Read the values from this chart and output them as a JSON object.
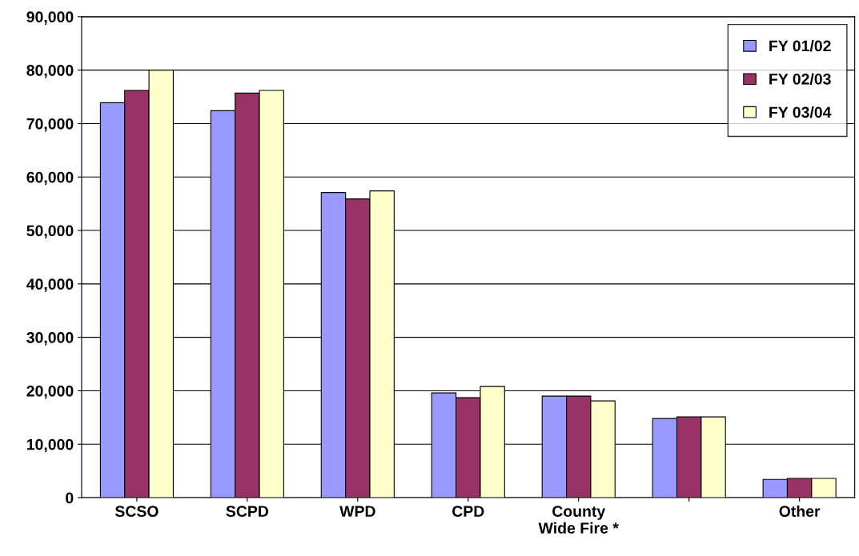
{
  "chart_data": {
    "type": "bar",
    "categories": [
      "SCSO",
      "SCPD",
      "WPD",
      "CPD",
      "County\nWide Fire *",
      null,
      "Other"
    ],
    "series": [
      {
        "name": "FY 01/02",
        "color": "#9999ff",
        "values": [
          73900,
          72400,
          57100,
          19600,
          19000,
          14800,
          3400
        ]
      },
      {
        "name": "FY 02/03",
        "color": "#993366",
        "values": [
          76200,
          75700,
          55900,
          18700,
          19000,
          15100,
          3600
        ]
      },
      {
        "name": "FY 03/04",
        "color": "#ffffcc",
        "values": [
          80000,
          76200,
          57400,
          20800,
          18100,
          15100,
          3600
        ]
      }
    ],
    "ylim": [
      0,
      90000
    ],
    "yticks": [
      {
        "value": 0,
        "label": "0"
      },
      {
        "value": 10000,
        "label": "10,000"
      },
      {
        "value": 20000,
        "label": "20,000"
      },
      {
        "value": 30000,
        "label": "30,000"
      },
      {
        "value": 40000,
        "label": "40,000"
      },
      {
        "value": 50000,
        "label": "50,000"
      },
      {
        "value": 60000,
        "label": "60,000"
      },
      {
        "value": 70000,
        "label": "70,000"
      },
      {
        "value": 80000,
        "label": "80,000"
      },
      {
        "value": 90000,
        "label": "90,000"
      }
    ],
    "grid": "y",
    "legend": "top right"
  }
}
